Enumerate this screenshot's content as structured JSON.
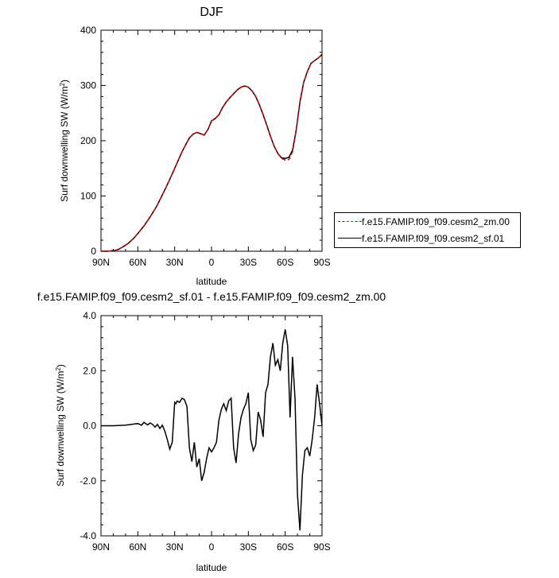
{
  "chart_data": [
    {
      "type": "line",
      "title": "DJF",
      "xlabel": "latitude",
      "ylabel": "Surf downwelling SW (W/m",
      "ylabel_sup": "2",
      "ylabel_close": ")",
      "x_tick_labels": [
        "90N",
        "60N",
        "30N",
        "0",
        "30S",
        "60S",
        "90S"
      ],
      "x_tick_values": [
        90,
        60,
        30,
        0,
        -30,
        -60,
        -90
      ],
      "xlim": [
        90,
        -90
      ],
      "ylim": [
        0,
        400
      ],
      "y_tick_values": [
        0,
        100,
        200,
        300,
        400
      ],
      "y_tick_labels": [
        "0",
        "100",
        "200",
        "300",
        "400"
      ],
      "legend_position": "right",
      "x": [
        90,
        85,
        80,
        76,
        72,
        68,
        64,
        60,
        55,
        50,
        45,
        40,
        35,
        30,
        27,
        24,
        21,
        18,
        15,
        12,
        9,
        6,
        3,
        0,
        -3,
        -6,
        -9,
        -12,
        -15,
        -18,
        -21,
        -24,
        -27,
        -30,
        -33,
        -36,
        -39,
        -42,
        -45,
        -48,
        -51,
        -54,
        -57,
        -60,
        -63,
        -66,
        -69,
        -72,
        -75,
        -78,
        -81,
        -84,
        -87,
        -90
      ],
      "series": [
        {
          "name": "f.e15.FAMIP.f09_f09.cesm2_zm.00",
          "color": "#cc0000",
          "dash": true,
          "values": [
            0,
            0,
            1,
            3,
            8,
            14,
            22,
            32,
            46,
            62,
            80,
            102,
            125,
            150,
            165,
            180,
            193,
            205,
            212,
            215,
            213,
            210,
            220,
            236,
            240,
            247,
            260,
            270,
            278,
            285,
            292,
            297,
            299,
            297,
            290,
            280,
            265,
            247,
            228,
            208,
            190,
            177,
            168,
            165,
            166,
            180,
            220,
            270,
            305,
            325,
            340,
            345,
            350,
            356
          ]
        },
        {
          "name": "f.e15.FAMIP.f09_f09.cesm2_sf.01",
          "color": "#000000",
          "dash": false,
          "values": [
            0,
            0,
            1,
            3,
            8,
            14,
            22,
            32,
            46,
            62,
            80,
            102,
            125,
            150,
            165,
            180,
            193,
            205,
            212,
            215,
            213,
            210,
            220,
            236,
            240,
            247,
            260,
            270,
            278,
            285,
            292,
            297,
            299,
            297,
            290,
            280,
            265,
            247,
            228,
            208,
            190,
            177,
            169,
            168,
            170,
            183,
            220,
            270,
            305,
            325,
            340,
            345,
            350,
            356
          ]
        }
      ]
    },
    {
      "type": "line",
      "title": "f.e15.FAMIP.f09_f09.cesm2_sf.01 - f.e15.FAMIP.f09_f09.cesm2_zm.00",
      "xlabel": "latitude",
      "ylabel": "Surf downwelling SW (W/m",
      "ylabel_sup": "2",
      "ylabel_close": ")",
      "x_tick_labels": [
        "90N",
        "60N",
        "30N",
        "0",
        "30S",
        "60S",
        "90S"
      ],
      "x_tick_values": [
        90,
        60,
        30,
        0,
        -30,
        -60,
        -90
      ],
      "xlim": [
        90,
        -90
      ],
      "ylim": [
        -4,
        4
      ],
      "y_tick_values": [
        -4,
        -2,
        0,
        2,
        4
      ],
      "y_tick_labels": [
        "-4.0",
        "-2.0",
        "0.0",
        "2.0",
        "4.0"
      ],
      "x": [
        90,
        80,
        70,
        65,
        60,
        57,
        55,
        52,
        50,
        48,
        46,
        44,
        42,
        40,
        38,
        36,
        34,
        32,
        30,
        29,
        28,
        26,
        24,
        22,
        20,
        18,
        16,
        14,
        12,
        10,
        8,
        6,
        4,
        2,
        0,
        -2,
        -4,
        -6,
        -8,
        -10,
        -12,
        -14,
        -16,
        -18,
        -20,
        -22,
        -24,
        -26,
        -28,
        -30,
        -32,
        -34,
        -36,
        -38,
        -40,
        -42,
        -44,
        -46,
        -48,
        -50,
        -52,
        -54,
        -56,
        -58,
        -60,
        -62,
        -64,
        -66,
        -68,
        -70,
        -72,
        -74,
        -76,
        -78,
        -80,
        -82,
        -84,
        -86,
        -88,
        -90
      ],
      "series": [
        {
          "name": "",
          "color": "#000000",
          "dash": false,
          "values": [
            0,
            0,
            0.02,
            0.05,
            0.08,
            0.02,
            0.12,
            0.03,
            0.1,
            0.05,
            -0.05,
            0.05,
            -0.1,
            0.02,
            -0.2,
            -0.5,
            -0.85,
            -0.6,
            0.85,
            0.8,
            0.9,
            0.85,
            1.0,
            0.95,
            0.7,
            -0.8,
            -1.3,
            -0.6,
            -1.5,
            -1.2,
            -2.0,
            -1.7,
            -1.2,
            -0.8,
            -0.95,
            -0.8,
            -0.6,
            0.2,
            0.6,
            0.8,
            0.55,
            0.9,
            1.0,
            -0.8,
            -1.35,
            -0.3,
            0.3,
            0.6,
            0.8,
            1.2,
            -0.5,
            -0.9,
            -0.7,
            0.5,
            0.2,
            -0.4,
            1.2,
            1.5,
            2.5,
            3.0,
            2.2,
            2.4,
            2.0,
            3.0,
            3.5,
            2.9,
            0.3,
            2.5,
            1.0,
            -2.5,
            -3.8,
            -1.8,
            -0.9,
            -0.8,
            -1.1,
            -0.5,
            0.3,
            1.5,
            0.8,
            0
          ]
        }
      ]
    }
  ],
  "legend": [
    {
      "label": "f.e15.FAMIP.f09_f09.cesm2_zm.00",
      "color": "#cc0000",
      "dash": true
    },
    {
      "label": "f.e15.FAMIP.f09_f09.cesm2_sf.01",
      "color": "#000000",
      "dash": false
    }
  ]
}
